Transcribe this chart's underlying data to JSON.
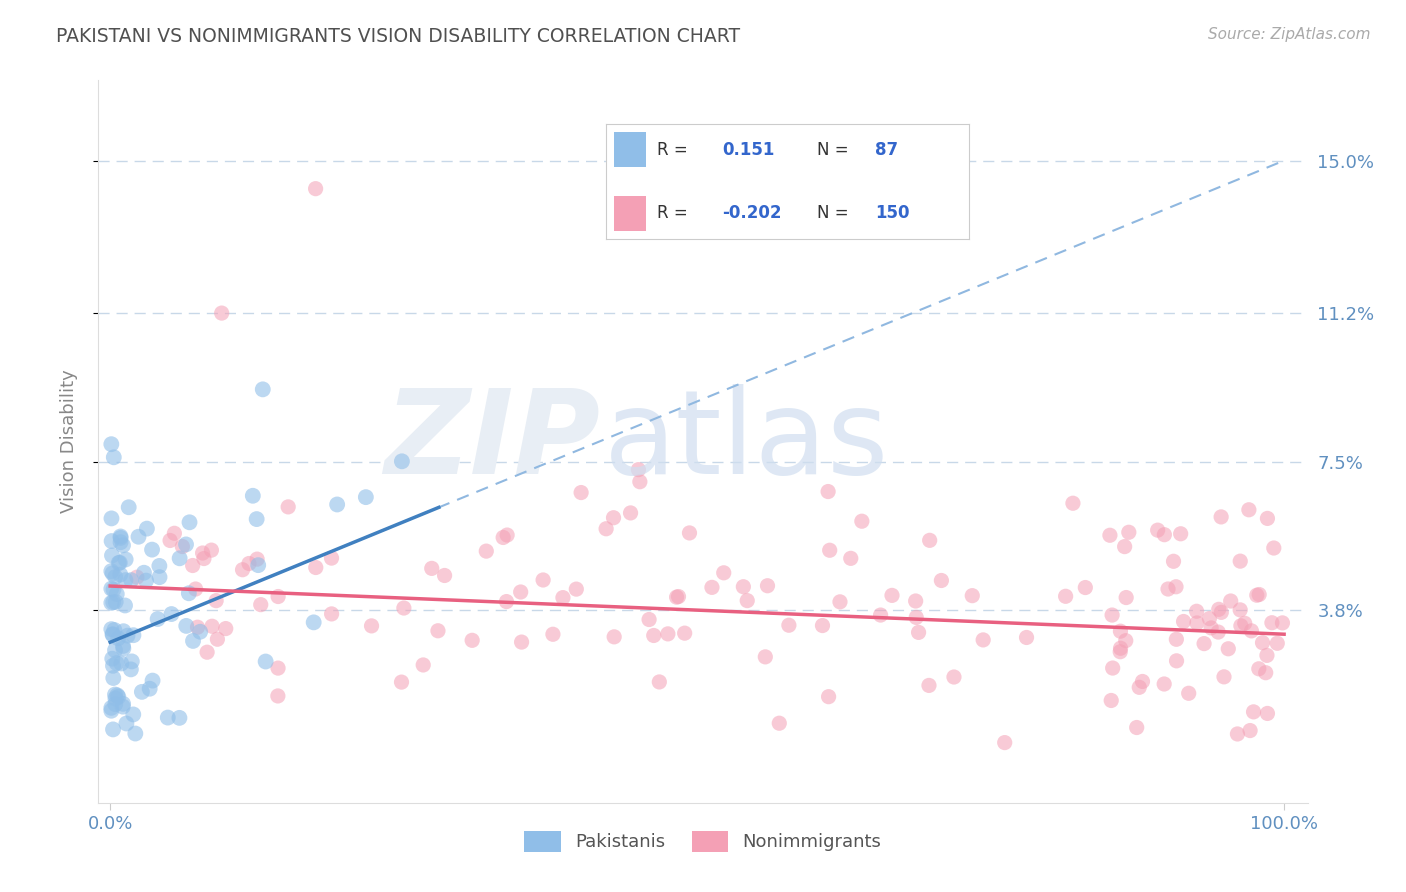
{
  "title": "PAKISTANI VS NONIMMIGRANTS VISION DISABILITY CORRELATION CHART",
  "source": "Source: ZipAtlas.com",
  "ylabel": "Vision Disability",
  "xlim": [
    -0.01,
    1.02
  ],
  "ylim": [
    -0.01,
    0.17
  ],
  "yticks": [
    0.038,
    0.075,
    0.112,
    0.15
  ],
  "ytick_labels": [
    "3.8%",
    "7.5%",
    "11.2%",
    "15.0%"
  ],
  "xtick_labels": [
    "0.0%",
    "100.0%"
  ],
  "blue_color": "#90BEE8",
  "pink_color": "#F4A0B5",
  "trend_blue_color": "#4080C0",
  "trend_pink_color": "#E86080",
  "trend_blue_dash_color": "#90B8E0",
  "grid_color": "#C8D8E8",
  "background_color": "#FFFFFF",
  "title_color": "#505050",
  "axis_tick_color": "#6090C0",
  "legend_text_color": "#3366CC",
  "seed": 42,
  "blue_N": 87,
  "pink_N": 150,
  "blue_trend_slope": 0.12,
  "blue_trend_intercept": 0.03,
  "pink_trend_slope": -0.012,
  "pink_trend_intercept": 0.044
}
